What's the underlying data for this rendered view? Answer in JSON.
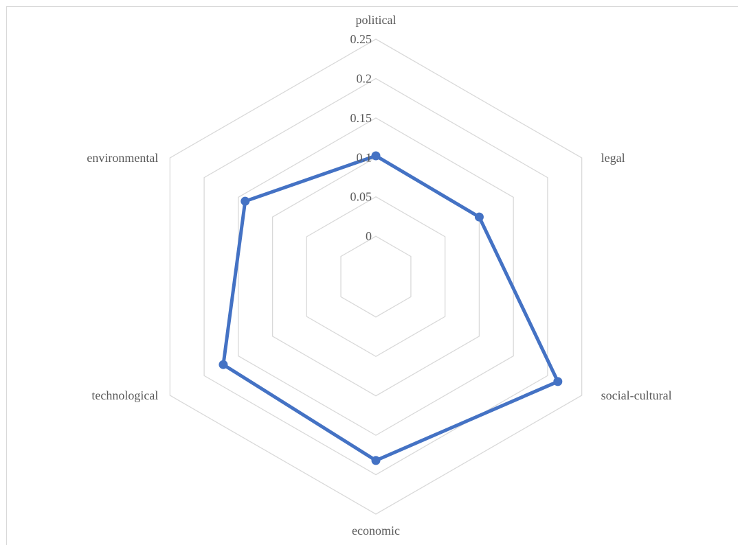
{
  "chart_data": {
    "type": "radar",
    "title": "",
    "categories": [
      "political",
      "legal",
      "social-cultural",
      "economic",
      "technological",
      "environmental"
    ],
    "series": [
      {
        "values": [
          0.102,
          0.1,
          0.215,
          0.182,
          0.172,
          0.14
        ]
      }
    ],
    "rlim": [
      0,
      0.25
    ],
    "ticks": [
      "0",
      "0.05",
      "0.1",
      "0.15",
      "0.2",
      "0.25"
    ],
    "tick_values": [
      0,
      0.05,
      0.1,
      0.15,
      0.2,
      0.25
    ],
    "r_min_fraction": 0.17,
    "grid": true,
    "legend": "none",
    "colors": {
      "series": "#4472c4",
      "grid": "#d9d9d9",
      "text": "#595959"
    }
  }
}
